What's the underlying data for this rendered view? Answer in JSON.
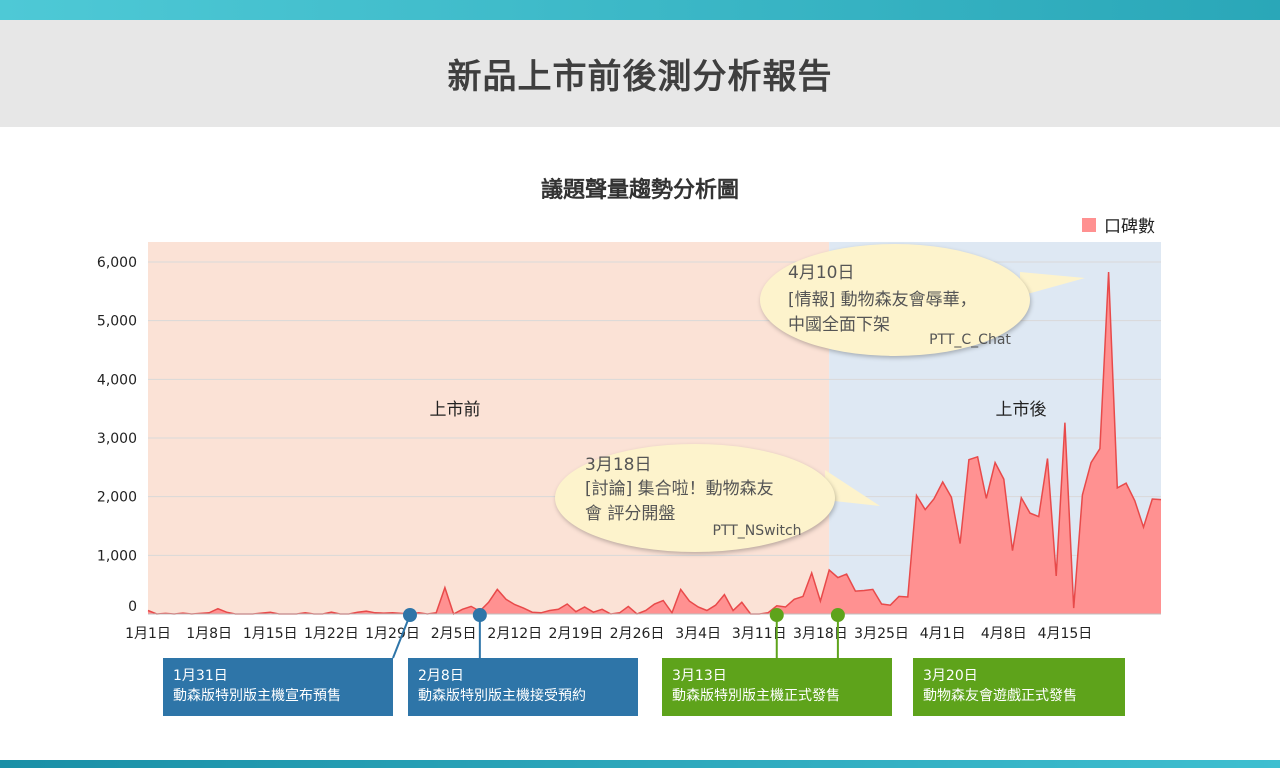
{
  "page_title": "新品上市前後測分析報告",
  "chart_data": {
    "type": "area",
    "title": "議題聲量趨勢分析圖",
    "series": [
      {
        "name": "口碑數",
        "color": "#ff9191",
        "line_color": "#e84a4a",
        "values": [
          60,
          0,
          10,
          0,
          15,
          0,
          10,
          20,
          90,
          30,
          0,
          0,
          0,
          15,
          30,
          0,
          0,
          0,
          20,
          0,
          0,
          30,
          0,
          0,
          30,
          50,
          20,
          15,
          20,
          10,
          0,
          20,
          0,
          20,
          450,
          0,
          80,
          130,
          50,
          200,
          420,
          250,
          160,
          100,
          30,
          20,
          60,
          80,
          170,
          40,
          120,
          30,
          80,
          0,
          20,
          130,
          0,
          60,
          170,
          230,
          20,
          420,
          220,
          120,
          60,
          150,
          330,
          60,
          200,
          0,
          0,
          20,
          140,
          120,
          250,
          300,
          700,
          220,
          750,
          620,
          680,
          390,
          400,
          420,
          170,
          150,
          300,
          290,
          2020,
          1780,
          1960,
          2250,
          1990,
          1200,
          2630,
          2680,
          1970,
          2580,
          2300,
          1080,
          1980,
          1720,
          1660,
          2650,
          650,
          3260,
          100,
          2030,
          2580,
          2820,
          5830,
          2150,
          2230,
          1930,
          1480,
          1960,
          1950
        ]
      }
    ],
    "start_date": "2020-01-01",
    "x_tick_labels": [
      "1月1日",
      "1月8日",
      "1月15日",
      "1月22日",
      "1月29日",
      "2月5日",
      "2月12日",
      "2月19日",
      "2月26日",
      "3月4日",
      "3月11日",
      "3月18日",
      "3月25日",
      "4月1日",
      "4月8日",
      "4月15日"
    ],
    "y_ticks": [
      "0",
      "1,000",
      "2,000",
      "3,000",
      "4,000",
      "5,000",
      "6,000"
    ],
    "ylim": [
      0,
      6000
    ],
    "grid": true,
    "legend_position": "top-right",
    "regions": [
      {
        "label": "上市前",
        "color": "#fbe2d6",
        "start_index": 0,
        "end_index": 78
      },
      {
        "label": "上市後",
        "color": "#dee8f3",
        "start_index": 78,
        "end_index": 105
      }
    ],
    "callouts": [
      {
        "date": "4月10日",
        "lines": [
          "[情報] 動物森友會辱華，",
          "中國全面下架"
        ],
        "source": "PTT_C_Chat",
        "target_index": 100
      },
      {
        "date": "3月18日",
        "lines": [
          "[討論] 集合啦！動物森友",
          "會 評分開盤"
        ],
        "source": "PTT_NSwitch",
        "target_index": 77
      }
    ],
    "events": [
      {
        "date": "1月31日",
        "label": "動森版特別版主機宣布預售",
        "color": "#2e75a8",
        "index": 30
      },
      {
        "date": "2月8日",
        "label": "動森版特別版主機接受預約",
        "color": "#2e75a8",
        "index": 38
      },
      {
        "date": "3月13日",
        "label": "動森版特別版主機正式發售",
        "color": "#5ea31b",
        "index": 72
      },
      {
        "date": "3月20日",
        "label": "動物森友會遊戲正式發售",
        "color": "#5ea31b",
        "index": 79
      }
    ]
  }
}
